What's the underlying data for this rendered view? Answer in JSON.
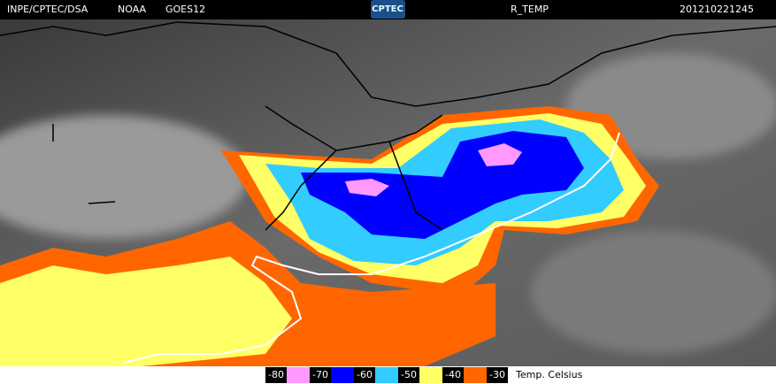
{
  "header": {
    "source": "INPE/CPTEC/DSA",
    "agency": "NOAA",
    "satellite": "GOES12",
    "logo": "CPTEC",
    "product": "R_TEMP",
    "timestamp": "201210221245"
  },
  "legend": {
    "labels": [
      "-80",
      "-70",
      "-60",
      "-50",
      "-40",
      "-30"
    ],
    "colors": [
      "#ff99ff",
      "#0000ff",
      "#33ccff",
      "#ffff66",
      "#ff6600"
    ],
    "unit": "Temp. Celsius"
  }
}
